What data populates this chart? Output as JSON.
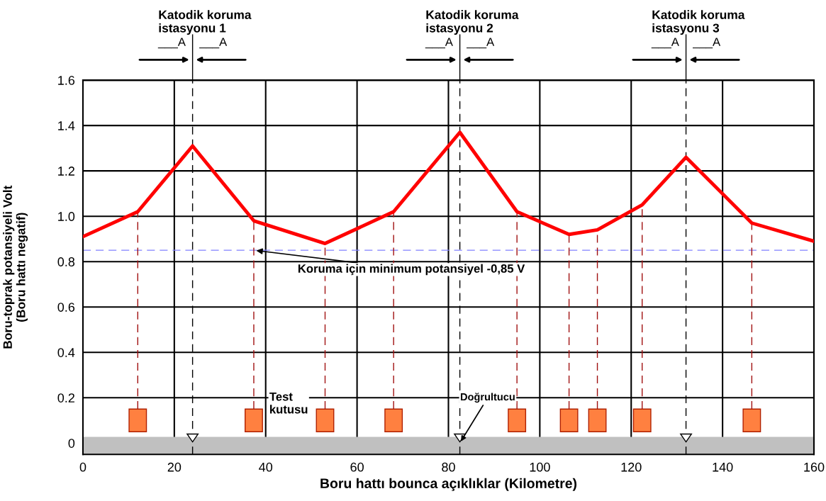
{
  "chart_data": {
    "type": "line",
    "xlabel": "Boru hattı bounca açıklıklar (Kilometre)",
    "ylabel": "Boru-toprak potansiyeli Volt\n(Boru hattı negatif)",
    "x": [
      0,
      12,
      24,
      37.4,
      53,
      68,
      82.5,
      95,
      106.4,
      112.6,
      122.4,
      132,
      146.4,
      160
    ],
    "series": [
      {
        "color": "#ff0000",
        "values": [
          0.91,
          1.02,
          1.31,
          0.98,
          0.88,
          1.02,
          1.37,
          1.02,
          0.92,
          0.94,
          1.05,
          1.26,
          0.97,
          0.89
        ]
      }
    ],
    "xlim": [
      0,
      160
    ],
    "ylim": [
      -0.05,
      1.6
    ],
    "xticks": [
      0,
      20,
      40,
      60,
      80,
      100,
      120,
      140,
      160
    ],
    "yticks": [
      0,
      0.2,
      0.4,
      0.6,
      0.8,
      {
        "value": 1.0,
        "label": "1.0"
      },
      1.2,
      1.4,
      1.6
    ],
    "grid": true,
    "marker": "none",
    "line_style": "solid",
    "ref_lines": [
      {
        "axis": "y",
        "value": 0.85,
        "label": "Koruma için minimum potansiyel -0,85 V",
        "color": "#8080ff",
        "line_style": "dashed"
      },
      {
        "axis": "x",
        "value": 24,
        "color": "#000000",
        "line_style": "dashed"
      },
      {
        "axis": "x",
        "value": 82.5,
        "color": "#000000",
        "line_style": "dashed"
      },
      {
        "axis": "x",
        "value": 132,
        "color": "#000000",
        "line_style": "dashed"
      }
    ],
    "bands": [
      {
        "axis": "y",
        "from": -0.05,
        "to": 0.025,
        "color": "#c0c0c0"
      }
    ],
    "annotations": [
      "Katodik koruma\nistasyonu 1",
      "Katodik koruma\nistasyonu 2",
      "Katodik koruma\nistasyonu 3",
      "___A",
      "___A",
      "___A",
      "___A",
      "___A",
      "___A",
      "Test\nkutusu",
      {
        "text": "Doğrultucu",
        "x": 82.5,
        "y": 0
      }
    ]
  }
}
